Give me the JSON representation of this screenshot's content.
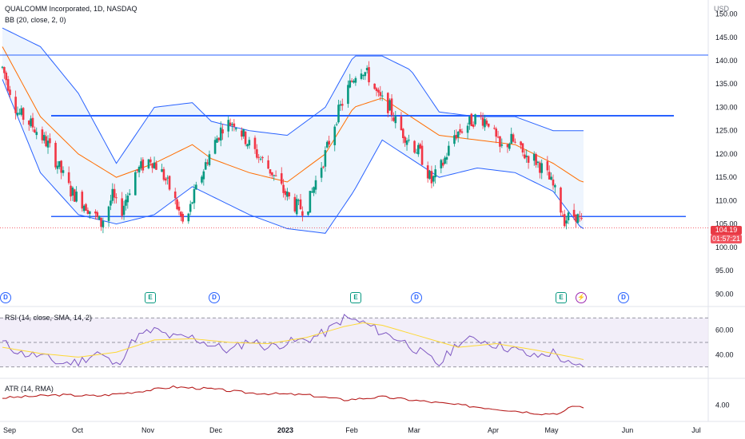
{
  "header": {
    "symbol_line": "QUALCOMM Incorporated, 1D, NASDAQ",
    "bb_line": "BB (20, close, 2, 0)",
    "currency": "USD"
  },
  "price_tag": {
    "price": "104.19",
    "countdown": "01:57:21"
  },
  "rsi_label": "RSI (14, close, SMA, 14, 2)",
  "atr_label": "ATR (14, RMA)",
  "events": [
    {
      "type": "dividend",
      "label": "D",
      "month": "Sep"
    },
    {
      "type": "earnings",
      "label": "E",
      "month": "Nov"
    },
    {
      "type": "dividend",
      "label": "D",
      "month": "Dec"
    },
    {
      "type": "earnings",
      "label": "E",
      "month": "Feb"
    },
    {
      "type": "dividend",
      "label": "D",
      "month": "Mar"
    },
    {
      "type": "earnings",
      "label": "E",
      "month": "May"
    },
    {
      "type": "split",
      "label": "⚡",
      "month": "May"
    },
    {
      "type": "dividend",
      "label": "D",
      "month": "Jun"
    }
  ],
  "colors": {
    "up": "#089981",
    "down": "#f23645",
    "bb_band": "#2962ff",
    "bb_basis": "#ff6d00",
    "bb_fill": "#e3effd",
    "rsi": "#7e57c2",
    "rsi_ma": "#fdd835",
    "atr": "#b71c1c",
    "level_line": "#2962ff"
  },
  "chart_data": {
    "type": "candlestick",
    "x_labels": [
      "Sep",
      "Oct",
      "Nov",
      "Dec",
      "2023",
      "Feb",
      "Mar",
      "Apr",
      "May",
      "Jun",
      "Jul"
    ],
    "y_ticks": [
      "150.00",
      "145.00",
      "140.00",
      "135.00",
      "130.00",
      "125.00",
      "120.00",
      "115.00",
      "110.00",
      "105.00",
      "100.00",
      "95.00",
      "90.00"
    ],
    "ylim": [
      88,
      153
    ],
    "last_price": 104.19,
    "horizontal_levels": [
      141.2,
      128.2,
      106.6
    ],
    "price_path": [
      [
        0,
        138.5
      ],
      [
        8,
        129
      ],
      [
        16,
        126
      ],
      [
        24,
        122
      ],
      [
        30,
        117
      ],
      [
        36,
        112
      ],
      [
        44,
        109
      ],
      [
        52,
        105
      ],
      [
        58,
        111
      ],
      [
        62,
        107
      ],
      [
        70,
        116
      ],
      [
        78,
        119
      ],
      [
        84,
        116
      ],
      [
        90,
        111
      ],
      [
        96,
        104
      ],
      [
        100,
        110
      ],
      [
        108,
        119
      ],
      [
        116,
        126
      ],
      [
        122,
        127
      ],
      [
        130,
        122
      ],
      [
        136,
        119
      ],
      [
        142,
        116
      ],
      [
        148,
        112
      ],
      [
        154,
        109
      ],
      [
        160,
        108
      ],
      [
        164,
        113
      ],
      [
        170,
        120
      ],
      [
        176,
        128
      ],
      [
        182,
        134
      ],
      [
        188,
        139
      ],
      [
        194,
        136
      ],
      [
        198,
        132
      ],
      [
        204,
        130
      ],
      [
        208,
        126
      ],
      [
        214,
        123
      ],
      [
        220,
        120
      ],
      [
        226,
        114
      ],
      [
        232,
        118
      ],
      [
        238,
        124
      ],
      [
        244,
        126
      ],
      [
        250,
        128
      ],
      [
        256,
        127
      ],
      [
        262,
        121
      ],
      [
        268,
        123
      ],
      [
        274,
        120
      ],
      [
        280,
        119
      ],
      [
        286,
        116
      ],
      [
        290,
        113
      ],
      [
        296,
        106
      ],
      [
        302,
        107
      ],
      [
        306,
        104.19
      ]
    ],
    "price_noise_seed": 7,
    "bb": {
      "upper": [
        [
          0,
          147
        ],
        [
          20,
          143
        ],
        [
          40,
          133
        ],
        [
          60,
          118
        ],
        [
          80,
          130
        ],
        [
          100,
          131
        ],
        [
          110,
          127
        ],
        [
          130,
          125
        ],
        [
          150,
          124
        ],
        [
          170,
          130
        ],
        [
          185,
          141
        ],
        [
          200,
          141
        ],
        [
          215,
          138
        ],
        [
          230,
          129
        ],
        [
          250,
          128
        ],
        [
          270,
          128
        ],
        [
          290,
          125
        ],
        [
          305,
          125
        ]
      ],
      "basis": [
        [
          0,
          143
        ],
        [
          20,
          128
        ],
        [
          40,
          120
        ],
        [
          60,
          115
        ],
        [
          80,
          118
        ],
        [
          100,
          122
        ],
        [
          110,
          119
        ],
        [
          130,
          116
        ],
        [
          150,
          114
        ],
        [
          170,
          120
        ],
        [
          185,
          130
        ],
        [
          200,
          132
        ],
        [
          215,
          128
        ],
        [
          230,
          124
        ],
        [
          250,
          123
        ],
        [
          270,
          122
        ],
        [
          290,
          118
        ],
        [
          305,
          114
        ]
      ],
      "lower": [
        [
          0,
          136
        ],
        [
          20,
          116
        ],
        [
          40,
          107
        ],
        [
          60,
          105
        ],
        [
          80,
          107
        ],
        [
          100,
          113
        ],
        [
          110,
          111
        ],
        [
          130,
          107
        ],
        [
          150,
          104
        ],
        [
          170,
          103
        ],
        [
          185,
          112
        ],
        [
          200,
          123
        ],
        [
          215,
          119
        ],
        [
          230,
          115
        ],
        [
          250,
          117
        ],
        [
          270,
          116
        ],
        [
          290,
          112
        ],
        [
          305,
          104
        ]
      ]
    },
    "rsi": {
      "y_ticks": [
        "60.00",
        "40.00"
      ],
      "ylim": [
        22,
        78
      ],
      "band": [
        30,
        70
      ],
      "mid": 50,
      "values": [
        [
          0,
          50
        ],
        [
          10,
          41
        ],
        [
          20,
          39
        ],
        [
          30,
          33
        ],
        [
          40,
          34
        ],
        [
          50,
          42
        ],
        [
          60,
          31
        ],
        [
          70,
          54
        ],
        [
          80,
          60
        ],
        [
          90,
          54
        ],
        [
          100,
          54
        ],
        [
          110,
          48
        ],
        [
          120,
          43
        ],
        [
          130,
          52
        ],
        [
          140,
          46
        ],
        [
          150,
          50
        ],
        [
          160,
          52
        ],
        [
          170,
          58
        ],
        [
          180,
          70
        ],
        [
          190,
          66
        ],
        [
          200,
          58
        ],
        [
          210,
          52
        ],
        [
          220,
          42
        ],
        [
          230,
          32
        ],
        [
          240,
          50
        ],
        [
          250,
          53
        ],
        [
          260,
          48
        ],
        [
          270,
          44
        ],
        [
          280,
          38
        ],
        [
          290,
          42
        ],
        [
          300,
          30
        ],
        [
          306,
          30
        ]
      ],
      "ma": [
        [
          0,
          46
        ],
        [
          20,
          41
        ],
        [
          40,
          38
        ],
        [
          60,
          42
        ],
        [
          80,
          52
        ],
        [
          100,
          53
        ],
        [
          120,
          50
        ],
        [
          140,
          49
        ],
        [
          160,
          54
        ],
        [
          180,
          63
        ],
        [
          190,
          66
        ],
        [
          200,
          64
        ],
        [
          220,
          55
        ],
        [
          240,
          46
        ],
        [
          260,
          49
        ],
        [
          280,
          44
        ],
        [
          300,
          38
        ],
        [
          306,
          36
        ]
      ]
    },
    "atr": {
      "y_ticks": [
        "4.00"
      ],
      "ylim": [
        2.5,
        6.5
      ],
      "values": [
        [
          0,
          4.7
        ],
        [
          30,
          5.0
        ],
        [
          50,
          4.9
        ],
        [
          70,
          5.3
        ],
        [
          90,
          5.8
        ],
        [
          110,
          5.6
        ],
        [
          130,
          5.2
        ],
        [
          160,
          5.0
        ],
        [
          180,
          4.5
        ],
        [
          200,
          4.8
        ],
        [
          230,
          4.2
        ],
        [
          260,
          3.6
        ],
        [
          285,
          3.1
        ],
        [
          295,
          3.2
        ],
        [
          300,
          3.9
        ],
        [
          306,
          3.8
        ]
      ]
    }
  }
}
